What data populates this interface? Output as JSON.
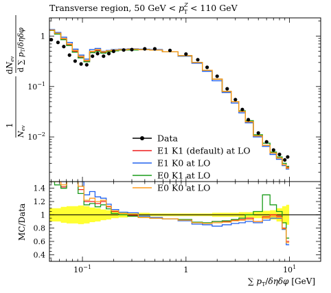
{
  "title": "Transverse region, 50 GeV < p_T^Z < 110 GeV",
  "upper_ylabel": "1/N_ev dN_ev / d∑p_T/δηδφ",
  "lower_ylabel": "MC/Data",
  "xlabel": "∑ p_T/δηδφ [GeV]",
  "colors": {
    "data": "#000000",
    "e1k1": "#ee1c1c",
    "e1k0": "#2060ee",
    "e0k1": "#1a9c1a",
    "e0k0": "#ff9a1a",
    "band": "#ffff33"
  },
  "chart_data": [
    {
      "type": "line",
      "panel": "upper",
      "title": "Transverse region, 50 GeV < p_T^Z < 110 GeV",
      "xscale": "log",
      "yscale": "log",
      "xlim": [
        0.048,
        20
      ],
      "ylim": [
        0.0013,
        2.3
      ],
      "xticks": [
        0.1,
        1,
        10
      ],
      "xtick_labels": [
        "10^-1",
        "1",
        "10^1"
      ],
      "yticks": [
        0.01,
        0.1,
        1
      ],
      "ytick_labels": [
        "10^-2",
        "10^-1",
        "1"
      ],
      "legend_position": "lower-left inside",
      "x": [
        0.05,
        0.058,
        0.066,
        0.075,
        0.085,
        0.097,
        0.11,
        0.125,
        0.14,
        0.16,
        0.18,
        0.2,
        0.25,
        0.3,
        0.4,
        0.5,
        0.7,
        1.0,
        1.3,
        1.6,
        2.0,
        2.5,
        3.0,
        3.5,
        4.0,
        5.0,
        6.0,
        7.0,
        8.0,
        9.0,
        9.6
      ],
      "series": [
        {
          "name": "Data",
          "style": "markers",
          "values": [
            0.85,
            0.75,
            0.62,
            0.42,
            0.32,
            0.28,
            0.27,
            0.4,
            0.45,
            0.4,
            0.45,
            0.5,
            0.53,
            0.54,
            0.56,
            0.56,
            0.52,
            0.44,
            0.34,
            0.24,
            0.16,
            0.09,
            0.055,
            0.035,
            0.022,
            0.012,
            0.008,
            0.0055,
            0.0045,
            0.0035,
            0.004
          ]
        },
        {
          "name": "E1 K1 (default) at LO",
          "style": "step",
          "values": [
            1.3,
            1.12,
            0.88,
            0.68,
            0.5,
            0.38,
            0.32,
            0.48,
            0.52,
            0.48,
            0.5,
            0.52,
            0.53,
            0.54,
            0.54,
            0.53,
            0.49,
            0.41,
            0.3,
            0.21,
            0.14,
            0.08,
            0.05,
            0.032,
            0.02,
            0.0105,
            0.0068,
            0.0048,
            0.0038,
            0.0028,
            0.0025
          ]
        },
        {
          "name": "E1 K0 at LO",
          "style": "step",
          "values": [
            1.35,
            1.18,
            0.95,
            0.75,
            0.55,
            0.42,
            0.35,
            0.54,
            0.57,
            0.5,
            0.52,
            0.54,
            0.55,
            0.56,
            0.55,
            0.54,
            0.49,
            0.4,
            0.29,
            0.2,
            0.13,
            0.076,
            0.047,
            0.03,
            0.019,
            0.01,
            0.0065,
            0.0045,
            0.0036,
            0.0027,
            0.0023
          ]
        },
        {
          "name": "E0 K1 at LO",
          "style": "step",
          "values": [
            1.3,
            1.1,
            0.85,
            0.65,
            0.48,
            0.37,
            0.31,
            0.47,
            0.5,
            0.46,
            0.49,
            0.51,
            0.53,
            0.53,
            0.54,
            0.53,
            0.49,
            0.41,
            0.3,
            0.21,
            0.14,
            0.08,
            0.05,
            0.033,
            0.021,
            0.011,
            0.0075,
            0.005,
            0.004,
            0.003,
            0.0026
          ]
        },
        {
          "name": "E0 K0 at LO",
          "style": "step",
          "values": [
            1.32,
            1.14,
            0.9,
            0.7,
            0.52,
            0.4,
            0.33,
            0.5,
            0.54,
            0.49,
            0.51,
            0.53,
            0.54,
            0.55,
            0.54,
            0.53,
            0.49,
            0.41,
            0.3,
            0.21,
            0.14,
            0.08,
            0.05,
            0.032,
            0.02,
            0.0105,
            0.0068,
            0.0048,
            0.0038,
            0.0028,
            0.0024
          ]
        }
      ]
    },
    {
      "type": "line",
      "panel": "lower",
      "xlabel": "∑ p_T/δηδφ [GeV]",
      "ylabel": "MC/Data",
      "xscale": "log",
      "xlim": [
        0.048,
        20
      ],
      "ylim": [
        0.3,
        1.5
      ],
      "xticks": [
        0.1,
        1,
        10
      ],
      "xtick_labels": [
        "10^-1",
        "1",
        "10^1"
      ],
      "yticks": [
        0.4,
        0.6,
        0.8,
        1,
        1.2,
        1.4
      ],
      "ytick_labels": [
        "0.4",
        "0.6",
        "0.8",
        "1",
        "1.2",
        "1.4"
      ],
      "reference_line": 1,
      "x": [
        0.05,
        0.058,
        0.066,
        0.075,
        0.085,
        0.097,
        0.11,
        0.125,
        0.14,
        0.16,
        0.18,
        0.2,
        0.25,
        0.3,
        0.4,
        0.5,
        0.7,
        1.0,
        1.3,
        1.6,
        2.0,
        2.5,
        3.0,
        3.5,
        4.0,
        5.0,
        6.0,
        7.0,
        8.0,
        9.0,
        9.6
      ],
      "data_band": {
        "lower": [
          0.9,
          0.9,
          0.88,
          0.87,
          0.87,
          0.86,
          0.87,
          0.89,
          0.9,
          0.92,
          0.93,
          0.95,
          0.96,
          0.97,
          0.97,
          0.98,
          0.98,
          0.98,
          0.98,
          0.98,
          0.97,
          0.97,
          0.97,
          0.96,
          0.96,
          0.95,
          0.94,
          0.93,
          0.9,
          0.87,
          0.85
        ],
        "upper": [
          1.1,
          1.1,
          1.12,
          1.13,
          1.13,
          1.14,
          1.13,
          1.11,
          1.1,
          1.08,
          1.07,
          1.05,
          1.04,
          1.03,
          1.03,
          1.02,
          1.02,
          1.02,
          1.02,
          1.02,
          1.03,
          1.03,
          1.03,
          1.04,
          1.04,
          1.05,
          1.06,
          1.07,
          1.1,
          1.13,
          1.15
        ]
      },
      "series": [
        {
          "name": "E1 K1 (default) at LO",
          "values": [
            1.5,
            1.5,
            1.42,
            1.55,
            1.55,
            1.38,
            1.2,
            1.2,
            1.17,
            1.2,
            1.12,
            1.05,
            1.0,
            0.99,
            0.96,
            0.95,
            0.94,
            0.92,
            0.88,
            0.87,
            0.9,
            0.9,
            0.92,
            0.93,
            0.95,
            0.9,
            0.97,
            1.0,
            0.98,
            0.8,
            0.6
          ]
        },
        {
          "name": "E1 K0 at LO",
          "values": [
            1.55,
            1.55,
            1.5,
            1.6,
            1.6,
            1.5,
            1.3,
            1.35,
            1.27,
            1.25,
            1.16,
            1.08,
            1.04,
            1.03,
            0.98,
            0.96,
            0.94,
            0.91,
            0.86,
            0.85,
            0.83,
            0.85,
            0.87,
            0.88,
            0.9,
            0.88,
            0.92,
            0.95,
            0.95,
            0.78,
            0.55
          ]
        },
        {
          "name": "E0 K1 at LO",
          "values": [
            1.5,
            1.45,
            1.4,
            1.5,
            1.5,
            1.32,
            1.15,
            1.17,
            1.12,
            1.15,
            1.09,
            1.02,
            1.0,
            0.98,
            0.96,
            0.95,
            0.94,
            0.93,
            0.89,
            0.88,
            0.9,
            0.91,
            0.93,
            0.95,
            1.0,
            1.05,
            1.3,
            1.15,
            1.05,
            0.88,
            0.65
          ]
        },
        {
          "name": "E0 K0 at LO",
          "values": [
            1.52,
            1.5,
            1.45,
            1.57,
            1.57,
            1.43,
            1.22,
            1.25,
            1.2,
            1.22,
            1.13,
            1.06,
            1.02,
            1.01,
            0.96,
            0.95,
            0.94,
            0.92,
            0.88,
            0.87,
            0.88,
            0.89,
            0.91,
            0.92,
            0.93,
            0.9,
            0.95,
            0.98,
            0.96,
            0.79,
            0.58
          ]
        }
      ]
    }
  ]
}
